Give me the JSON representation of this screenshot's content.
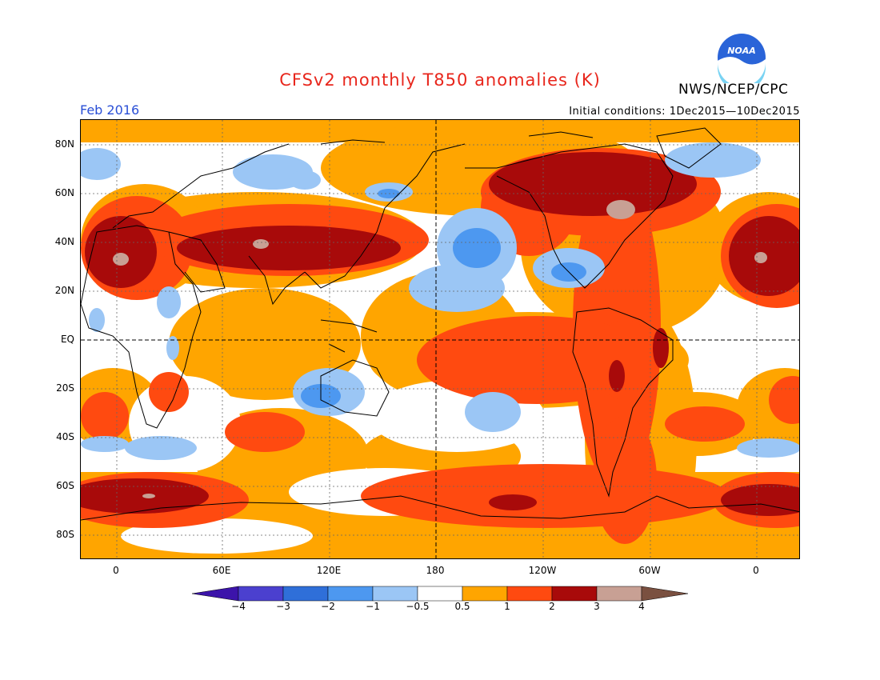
{
  "header": {
    "title": "CFSv2 monthly T850 anomalies (K)",
    "organization": "NWS/NCEP/CPC",
    "logo_text": "NOAA",
    "month": "Feb 2016",
    "initial_conditions": "Initial conditions: 1Dec2015—10Dec2015"
  },
  "axes": {
    "lat_labels": [
      "80N",
      "60N",
      "40N",
      "20N",
      "EQ",
      "20S",
      "40S",
      "60S",
      "80S"
    ],
    "lon_labels": [
      "0",
      "60E",
      "120E",
      "180",
      "120W",
      "60W",
      "0"
    ]
  },
  "colorbar": {
    "labels": [
      "−4",
      "−3",
      "−2",
      "−1",
      "−0.5",
      "0.5",
      "1",
      "2",
      "3",
      "4"
    ],
    "colors": [
      "#3c14aa",
      "#4b40cf",
      "#2f6fd9",
      "#4d98f0",
      "#9bc6f5",
      "#ffffff",
      "#ffa500",
      "#ff4a10",
      "#a80a0a",
      "#c8a094",
      "#7a5040"
    ]
  },
  "map_colors": {
    "ocean_background": "#ffffff",
    "warm_1": "#ffa500",
    "warm_2": "#ff4a10",
    "warm_3": "#a80a0a",
    "warm_4": "#c8a094",
    "cool_1": "#9bc6f5",
    "cool_2": "#4d98f0",
    "coastline": "#000000"
  }
}
